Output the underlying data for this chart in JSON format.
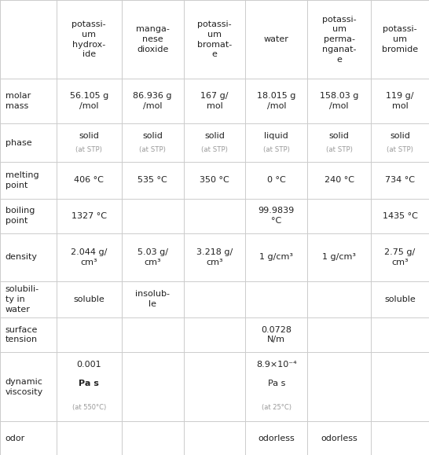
{
  "col_labels": [
    "",
    "potassi-\num\nhydrox-\nide",
    "manga-\nnese\ndioxide",
    "potassi-\num\nbromat-\ne",
    "water",
    "potassi-\num\nperma-\nnganat-\ne",
    "potassi-\num\nbromide"
  ],
  "row_labels": [
    "molar\nmass",
    "phase",
    "melting\npoint",
    "boiling\npoint",
    "density",
    "solubili-\nty in\nwater",
    "surface\ntension",
    "dynamic\nviscosity",
    "odor"
  ],
  "cells": [
    [
      "56.105 g\n/mol",
      "86.936 g\n/mol",
      "167 g/\nmol",
      "18.015 g\n/mol",
      "158.03 g\n/mol",
      "119 g/\nmol"
    ],
    [
      "solid\n(at STP)",
      "solid\n(at STP)",
      "solid\n(at STP)",
      "liquid\n(at STP)",
      "solid\n(at STP)",
      "solid\n(at STP)"
    ],
    [
      "406 °C",
      "535 °C",
      "350 °C",
      "0 °C",
      "240 °C",
      "734 °C"
    ],
    [
      "1327 °C",
      "",
      "",
      "99.9839\n°C",
      "",
      "1435 °C"
    ],
    [
      "2.044 g/\ncm³",
      "5.03 g/\ncm³",
      "3.218 g/\ncm³",
      "1 g/cm³",
      "1 g/cm³",
      "2.75 g/\ncm³"
    ],
    [
      "soluble",
      "insolub-\nle",
      "",
      "",
      "",
      "soluble"
    ],
    [
      "",
      "",
      "",
      "0.0728\nN/m",
      "",
      ""
    ],
    [
      "0.001\nPa s\n(at 550°C)",
      "",
      "",
      "8.9×10⁻⁴\nPa s\n(at 25°C)",
      "",
      ""
    ],
    [
      "",
      "",
      "",
      "odorless",
      "odorless",
      ""
    ]
  ],
  "line_color": "#cccccc",
  "text_color": "#222222",
  "small_text_color": "#999999",
  "bg_color": "#ffffff",
  "figsize": [
    5.46,
    5.79
  ],
  "dpi": 100
}
